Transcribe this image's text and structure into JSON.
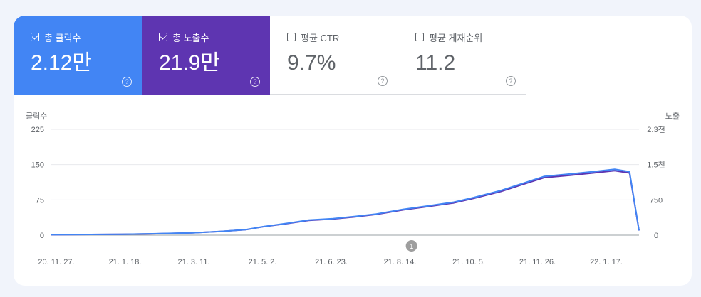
{
  "metrics": [
    {
      "label": "총 클릭수",
      "value": "2.12만",
      "checked": true
    },
    {
      "label": "총 노출수",
      "value": "21.9만",
      "checked": true
    },
    {
      "label": "평균 CTR",
      "value": "9.7%",
      "checked": false
    },
    {
      "label": "평균 게재순위",
      "value": "11.2",
      "checked": false
    }
  ],
  "help_glyph": "?",
  "annotation_label": "1",
  "colors": {
    "clicks": "#4285f4",
    "impressions": "#5e35b1",
    "ctr": "#00897b",
    "position": "#e8710a"
  },
  "chart_data": {
    "type": "line",
    "yleft_label": "클릭수",
    "yright_label": "노출",
    "yleft_ticks": [
      "0",
      "75",
      "150",
      "225"
    ],
    "yright_ticks": [
      "0",
      "750",
      "1.5천",
      "2.3천"
    ],
    "yleft_range": [
      0,
      225
    ],
    "yright_range": [
      0,
      2300
    ],
    "x_ticks": [
      "20. 11. 27.",
      "21. 1. 18.",
      "21. 3. 11.",
      "21. 5. 2.",
      "21. 6. 23.",
      "21. 8. 14.",
      "21. 10. 5.",
      "21. 11. 26.",
      "22. 1. 17."
    ],
    "x_range": [
      "2020-11-27",
      "2022-02-04"
    ],
    "grid": true,
    "series": [
      {
        "name": "클릭수",
        "axis": "left",
        "x": [
          "2020-11-27",
          "2021-01-18",
          "2021-02-10",
          "2021-03-11",
          "2021-04-01",
          "2021-04-20",
          "2021-05-02",
          "2021-05-20",
          "2021-06-05",
          "2021-06-23",
          "2021-07-10",
          "2021-07-25",
          "2021-08-14",
          "2021-09-01",
          "2021-09-20",
          "2021-10-05",
          "2021-10-25",
          "2021-11-10",
          "2021-11-26",
          "2021-12-15",
          "2022-01-01",
          "2022-01-17",
          "2022-01-28",
          "2022-02-04"
        ],
        "values": [
          1,
          2,
          3,
          5,
          8,
          12,
          18,
          25,
          32,
          35,
          40,
          45,
          55,
          62,
          70,
          80,
          95,
          110,
          125,
          130,
          135,
          140,
          135,
          10
        ]
      },
      {
        "name": "노출",
        "axis": "right",
        "x": [
          "2020-11-27",
          "2021-01-18",
          "2021-02-10",
          "2021-03-11",
          "2021-04-01",
          "2021-04-20",
          "2021-05-02",
          "2021-05-20",
          "2021-06-05",
          "2021-06-23",
          "2021-07-10",
          "2021-07-25",
          "2021-08-14",
          "2021-09-01",
          "2021-09-20",
          "2021-10-05",
          "2021-10-25",
          "2021-11-10",
          "2021-11-26",
          "2021-12-15",
          "2022-01-01",
          "2022-01-17",
          "2022-01-28",
          "2022-02-04"
        ],
        "values": [
          10,
          20,
          30,
          50,
          80,
          120,
          180,
          250,
          320,
          350,
          400,
          450,
          550,
          620,
          700,
          800,
          950,
          1100,
          1250,
          1300,
          1350,
          1400,
          1350,
          100
        ]
      }
    ]
  }
}
